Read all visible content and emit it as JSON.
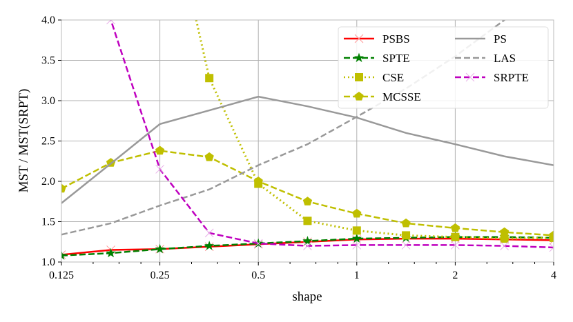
{
  "chart_data": {
    "type": "line",
    "title": "",
    "xlabel": "shape",
    "ylabel": "MST / MST(SRPT)",
    "xscale": "log2",
    "xlim": [
      0.125,
      4
    ],
    "ylim": [
      1.0,
      4.0
    ],
    "grid": true,
    "legend_placement": "top-right",
    "legend_columns": 2,
    "x_ticks": [
      0.125,
      0.25,
      0.5,
      1,
      2,
      4
    ],
    "x_tick_labels": [
      "0.125",
      "0.25",
      "0.5",
      "1",
      "2",
      "4"
    ],
    "y_ticks": [
      1.0,
      1.5,
      2.0,
      2.5,
      3.0,
      3.5,
      4.0
    ],
    "y_tick_labels": [
      "1.0",
      "1.5",
      "2.0",
      "2.5",
      "3.0",
      "3.5",
      "4.0"
    ],
    "x": [
      0.125,
      0.177,
      0.25,
      0.354,
      0.5,
      0.707,
      1,
      1.414,
      2,
      2.828,
      4
    ],
    "series": [
      {
        "name": "PSBS",
        "color": "#ff0000",
        "dash": "solid",
        "marker": "x",
        "values": [
          1.09,
          1.15,
          1.16,
          1.19,
          1.22,
          1.25,
          1.28,
          1.29,
          1.29,
          1.28,
          1.27
        ]
      },
      {
        "name": "SPTE",
        "color": "#008000",
        "dash": "dashed",
        "marker": "star",
        "values": [
          1.08,
          1.11,
          1.16,
          1.2,
          1.23,
          1.26,
          1.29,
          1.3,
          1.31,
          1.31,
          1.3
        ]
      },
      {
        "name": "CSE",
        "color": "#bfbf00",
        "dash": "dotted",
        "marker": "square",
        "values": [
          null,
          null,
          6.0,
          3.28,
          1.97,
          1.51,
          1.39,
          1.33,
          1.31,
          1.29,
          1.3
        ]
      },
      {
        "name": "MCSSE",
        "color": "#bfbf00",
        "dash": "dashed",
        "marker": "pentagon",
        "values": [
          1.91,
          2.23,
          2.38,
          2.3,
          2.0,
          1.75,
          1.6,
          1.48,
          1.42,
          1.37,
          1.33
        ]
      },
      {
        "name": "PS",
        "color": "#999999",
        "dash": "solid",
        "marker": "none",
        "values": [
          1.73,
          2.22,
          2.71,
          2.88,
          3.05,
          2.93,
          2.79,
          2.6,
          2.46,
          2.31,
          2.2
        ]
      },
      {
        "name": "LAS",
        "color": "#999999",
        "dash": "dashed",
        "marker": "none",
        "values": [
          1.34,
          1.48,
          1.7,
          1.9,
          2.2,
          2.46,
          2.8,
          3.15,
          3.55,
          4.0,
          4.5
        ]
      },
      {
        "name": "SRPTE",
        "color": "#bf00bf",
        "dash": "dashed",
        "marker": "xfaint",
        "values": [
          5.5,
          4.0,
          2.15,
          1.36,
          1.23,
          1.2,
          1.21,
          1.21,
          1.21,
          1.2,
          1.18
        ]
      }
    ]
  }
}
